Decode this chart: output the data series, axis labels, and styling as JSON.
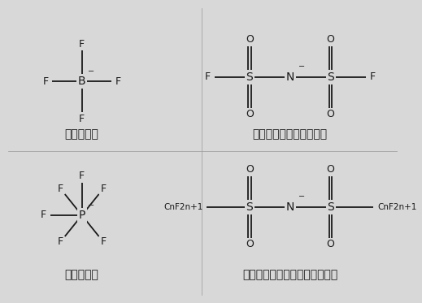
{
  "bg_color": "#d8d8d8",
  "line_color": "#1a1a1a",
  "text_color": "#1a1a1a",
  "font_size_atom": 9,
  "font_size_label": 10,
  "bf4_label": "四氟硼酸根",
  "tfsi1_label": "双（氟黄酰）亚胺阴离子",
  "pf6_label": "六氟磷酸根",
  "tfsi2_label": "双（全氟烷基黄酰）亚胺阴离子"
}
